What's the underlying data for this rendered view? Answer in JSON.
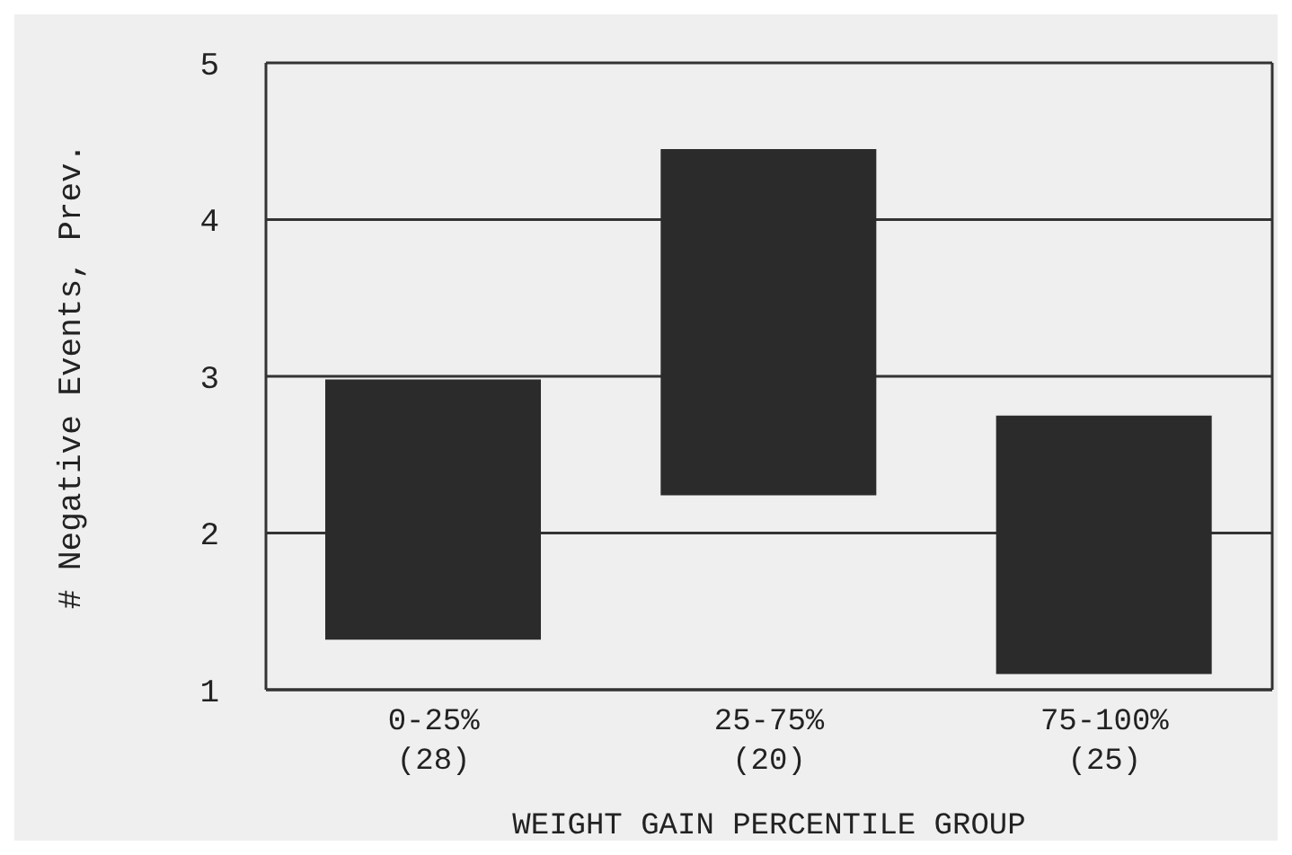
{
  "chart_data": {
    "type": "bar",
    "categories": [
      "0-25%\n(28)",
      "25-75%\n(20)",
      "75-100%\n(25)"
    ],
    "base": [
      1.32,
      2.24,
      1.1
    ],
    "values": [
      1.66,
      2.21,
      1.65
    ],
    "color": "#2b2b2b",
    "ylim": [
      1,
      5
    ],
    "yticks": [
      1,
      2,
      3,
      4,
      5
    ],
    "grid": "y",
    "xlabel": "WEIGHT GAIN PERCENTILE GROUP",
    "ylabel": "# Negative Events, Prev."
  }
}
